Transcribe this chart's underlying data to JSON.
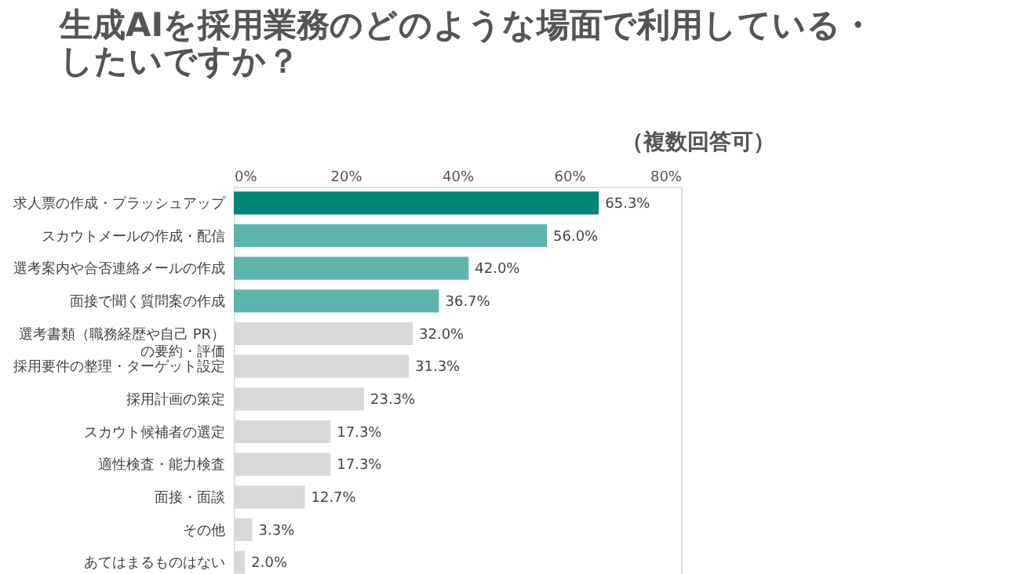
{
  "chart_data": {
    "type": "bar",
    "orientation": "horizontal",
    "title": "生成AIを採用業務のどのような場面で利用している・したいですか？",
    "annotations": [
      "（複数回答可）"
    ],
    "categories": [
      "求人票の作成・ブラッシュアップ",
      "スカウトメールの作成・配信",
      "選考案内や合否連絡メールの作成",
      "面接で聞く質問案の作成",
      "選考書類（職務経歴や自己 PR）の要約・評価",
      "採用要件の整理・ターゲット設定",
      "採用計画の策定",
      "スカウト候補者の選定",
      "適性検査・能力検査",
      "面接・面談",
      "その他",
      "あてはまるものはない"
    ],
    "values": [
      65.3,
      56.0,
      42.0,
      36.7,
      32.0,
      31.3,
      23.3,
      17.3,
      17.3,
      12.7,
      3.3,
      2.0
    ],
    "colors": [
      "#00857a",
      "#5bb5aa",
      "#5bb5aa",
      "#5bb5aa",
      "#d9d9d9",
      "#d9d9d9",
      "#d9d9d9",
      "#d9d9d9",
      "#d9d9d9",
      "#d9d9d9",
      "#d9d9d9",
      "#d9d9d9"
    ],
    "value_labels": [
      "65.3%",
      "56.0%",
      "42.0%",
      "36.7%",
      "32.0%",
      "31.3%",
      "23.3%",
      "17.3%",
      "17.3%",
      "12.7%",
      "3.3%",
      "2.0%"
    ],
    "xlim": [
      0,
      80
    ],
    "xticks": [
      {
        "value": 0,
        "label": "0%"
      },
      {
        "value": 20,
        "label": "20%"
      },
      {
        "value": 40,
        "label": "40%"
      },
      {
        "value": 60,
        "label": "60%"
      },
      {
        "value": 80,
        "label": "80%"
      }
    ],
    "grid": false
  }
}
